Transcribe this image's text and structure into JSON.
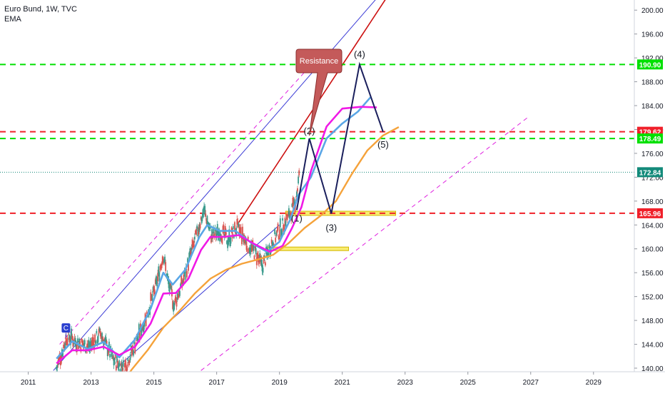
{
  "header": {
    "symbol_line": "Euro Bund, 1W, TVC",
    "indicator": "EMA"
  },
  "colors": {
    "background": "#ffffff",
    "axis_text": "#131722",
    "green_level": "#00e000",
    "red_level": "#f0202a",
    "teal_level": "#138a7a",
    "channel_blue": "#3b3bd6",
    "channel_red": "#cc1010",
    "channel_magenta": "#e020e0",
    "wave_navy": "#1a1f5c",
    "ema_fast": "#5aa6e6",
    "ema_mid": "#f019e6",
    "ema_slow": "#f5a23a",
    "zone_fill": "#f6e640",
    "callout_fill": "#c45a5a"
  },
  "chart_data": {
    "type": "line",
    "title": "Euro Bund, 1W, TVC",
    "x_ticks": [
      "2011",
      "2013",
      "2015",
      "2017",
      "2019",
      "2021",
      "2023",
      "2025",
      "2027",
      "2029"
    ],
    "y_ticks": [
      "200.00",
      "196.00",
      "192.00",
      "188.00",
      "184.00",
      "180.00",
      "176.00",
      "172.00",
      "168.00",
      "164.00",
      "160.00",
      "156.00",
      "152.00",
      "148.00",
      "144.00",
      "140.00"
    ],
    "xlim": [
      2010.1,
      2030.3
    ],
    "ylim": [
      139.4,
      201.7
    ],
    "grid": false,
    "price_path": [
      [
        2011.9,
        140.0
      ],
      [
        2012.25,
        145.5
      ],
      [
        2012.6,
        144.2
      ],
      [
        2012.95,
        143.6
      ],
      [
        2013.3,
        145.8
      ],
      [
        2013.7,
        141.5
      ],
      [
        2014.05,
        139.9
      ],
      [
        2014.4,
        144.0
      ],
      [
        2014.75,
        148.5
      ],
      [
        2015.05,
        153.5
      ],
      [
        2015.3,
        159.0
      ],
      [
        2015.45,
        154.5
      ],
      [
        2015.65,
        150.5
      ],
      [
        2015.95,
        155.0
      ],
      [
        2016.2,
        159.5
      ],
      [
        2016.45,
        164.0
      ],
      [
        2016.6,
        166.5
      ],
      [
        2016.85,
        162.0
      ],
      [
        2017.1,
        163.0
      ],
      [
        2017.35,
        161.5
      ],
      [
        2017.65,
        163.5
      ],
      [
        2017.95,
        161.0
      ],
      [
        2018.2,
        159.5
      ],
      [
        2018.45,
        157.0
      ],
      [
        2018.75,
        161.0
      ],
      [
        2019.05,
        163.5
      ],
      [
        2019.3,
        165.5
      ],
      [
        2019.5,
        167.5
      ],
      [
        2019.65,
        173.0
      ]
    ],
    "series": [
      {
        "name": "EMA",
        "color": "#5aa6e6",
        "values": [
          [
            2011.9,
            141.6
          ],
          [
            2012.4,
            144.5
          ],
          [
            2012.9,
            143.2
          ],
          [
            2013.4,
            144.4
          ],
          [
            2013.9,
            141.8
          ],
          [
            2014.4,
            144.8
          ],
          [
            2014.9,
            150.0
          ],
          [
            2015.3,
            156.0
          ],
          [
            2015.6,
            154.0
          ],
          [
            2016.0,
            156.5
          ],
          [
            2016.45,
            162.0
          ],
          [
            2016.7,
            164.0
          ],
          [
            2017.1,
            163.0
          ],
          [
            2017.6,
            163.0
          ],
          [
            2018.1,
            161.0
          ],
          [
            2018.6,
            159.5
          ],
          [
            2019.0,
            161.2
          ],
          [
            2019.35,
            165.0
          ],
          [
            2019.6,
            169.0
          ],
          [
            2020.0,
            172.0
          ],
          [
            2020.5,
            178.5
          ],
          [
            2021.0,
            181.0
          ],
          [
            2021.5,
            183.0
          ],
          [
            2021.9,
            185.4
          ]
        ]
      },
      {
        "name": "EMA",
        "color": "#f019e6",
        "values": [
          [
            2011.9,
            140.8
          ],
          [
            2012.4,
            143.0
          ],
          [
            2012.9,
            143.0
          ],
          [
            2013.4,
            143.6
          ],
          [
            2013.9,
            142.2
          ],
          [
            2014.4,
            143.6
          ],
          [
            2014.9,
            147.5
          ],
          [
            2015.3,
            152.5
          ],
          [
            2015.7,
            152.6
          ],
          [
            2016.1,
            155.0
          ],
          [
            2016.5,
            159.8
          ],
          [
            2016.8,
            162.0
          ],
          [
            2017.2,
            162.0
          ],
          [
            2017.7,
            162.3
          ],
          [
            2018.2,
            160.8
          ],
          [
            2018.7,
            159.5
          ],
          [
            2019.1,
            160.5
          ],
          [
            2019.4,
            163.5
          ],
          [
            2019.7,
            167.0
          ],
          [
            2020.0,
            173.0
          ],
          [
            2020.5,
            180.5
          ],
          [
            2021.0,
            183.5
          ],
          [
            2021.6,
            183.8
          ],
          [
            2022.1,
            183.7
          ]
        ]
      },
      {
        "name": "EMA",
        "color": "#f5a23a",
        "values": [
          [
            2013.8,
            136.0
          ],
          [
            2014.3,
            139.8
          ],
          [
            2014.8,
            143.0
          ],
          [
            2015.3,
            146.8
          ],
          [
            2015.8,
            149.5
          ],
          [
            2016.3,
            152.5
          ],
          [
            2016.8,
            155.0
          ],
          [
            2017.3,
            156.5
          ],
          [
            2017.8,
            157.5
          ],
          [
            2018.3,
            158.2
          ],
          [
            2018.8,
            159.0
          ],
          [
            2019.3,
            161.0
          ],
          [
            2019.8,
            163.5
          ],
          [
            2020.3,
            165.5
          ],
          [
            2020.8,
            168.0
          ],
          [
            2021.3,
            172.5
          ],
          [
            2021.8,
            176.5
          ],
          [
            2022.3,
            179.0
          ],
          [
            2022.8,
            180.4
          ]
        ]
      }
    ],
    "levels": [
      {
        "value": 190.9,
        "label": "190.90",
        "color": "#00e000",
        "style": "dashed"
      },
      {
        "value": 179.62,
        "label": "179.62",
        "color": "#f0202a",
        "style": "dashed"
      },
      {
        "value": 178.49,
        "label": "178.49",
        "color": "#00e000",
        "style": "dashed"
      },
      {
        "value": 172.84,
        "label": "172.84",
        "color": "#138a7a",
        "style": "dotted"
      },
      {
        "value": 165.96,
        "label": "165.96",
        "color": "#f0202a",
        "style": "dashed"
      }
    ],
    "wave_path": [
      [
        2019.55,
        166.5
      ],
      [
        2019.95,
        178.5
      ],
      [
        2020.65,
        165.9
      ],
      [
        2021.55,
        190.9
      ],
      [
        2022.3,
        179.6
      ]
    ],
    "wave_labels": [
      {
        "text": "(1)",
        "at": [
          2019.55,
          166.5
        ]
      },
      {
        "text": "(2)",
        "at": [
          2019.95,
          178.5
        ]
      },
      {
        "text": "(3)",
        "at": [
          2020.65,
          165.9
        ]
      },
      {
        "text": "(4)",
        "at": [
          2021.55,
          190.9
        ]
      },
      {
        "text": "(5)",
        "at": [
          2022.3,
          179.6
        ]
      }
    ],
    "annotations": [
      {
        "text": "Resistance",
        "at": [
          2019.95,
          178.5
        ]
      },
      {
        "text": "C",
        "at": [
          2012.2,
          146.8
        ]
      }
    ],
    "zones": [
      {
        "x": [
          2019.2,
          2022.7
        ],
        "y": [
          165.6,
          166.3
        ]
      },
      {
        "x": [
          2018.6,
          2021.2
        ],
        "y": [
          159.7,
          160.3
        ]
      }
    ],
    "trendlines": [
      {
        "color": "#3b3bd6",
        "from": [
          2011.8,
          139.6
        ],
        "to": [
          2022.1,
          202.0
        ]
      },
      {
        "color": "#3b3bd6",
        "from": [
          2013.8,
          140.0
        ],
        "to": [
          2019.0,
          164.0
        ]
      },
      {
        "color": "#cc1010",
        "from": [
          2017.7,
          164.4
        ],
        "to": [
          2022.4,
          202.0
        ]
      },
      {
        "color": "#e020e0",
        "from": [
          2012.0,
          144.0
        ],
        "to": [
          2019.9,
          190.2
        ]
      },
      {
        "color": "#e020e0",
        "from": [
          2016.5,
          139.6
        ],
        "to": [
          2026.9,
          182.0
        ]
      }
    ]
  }
}
